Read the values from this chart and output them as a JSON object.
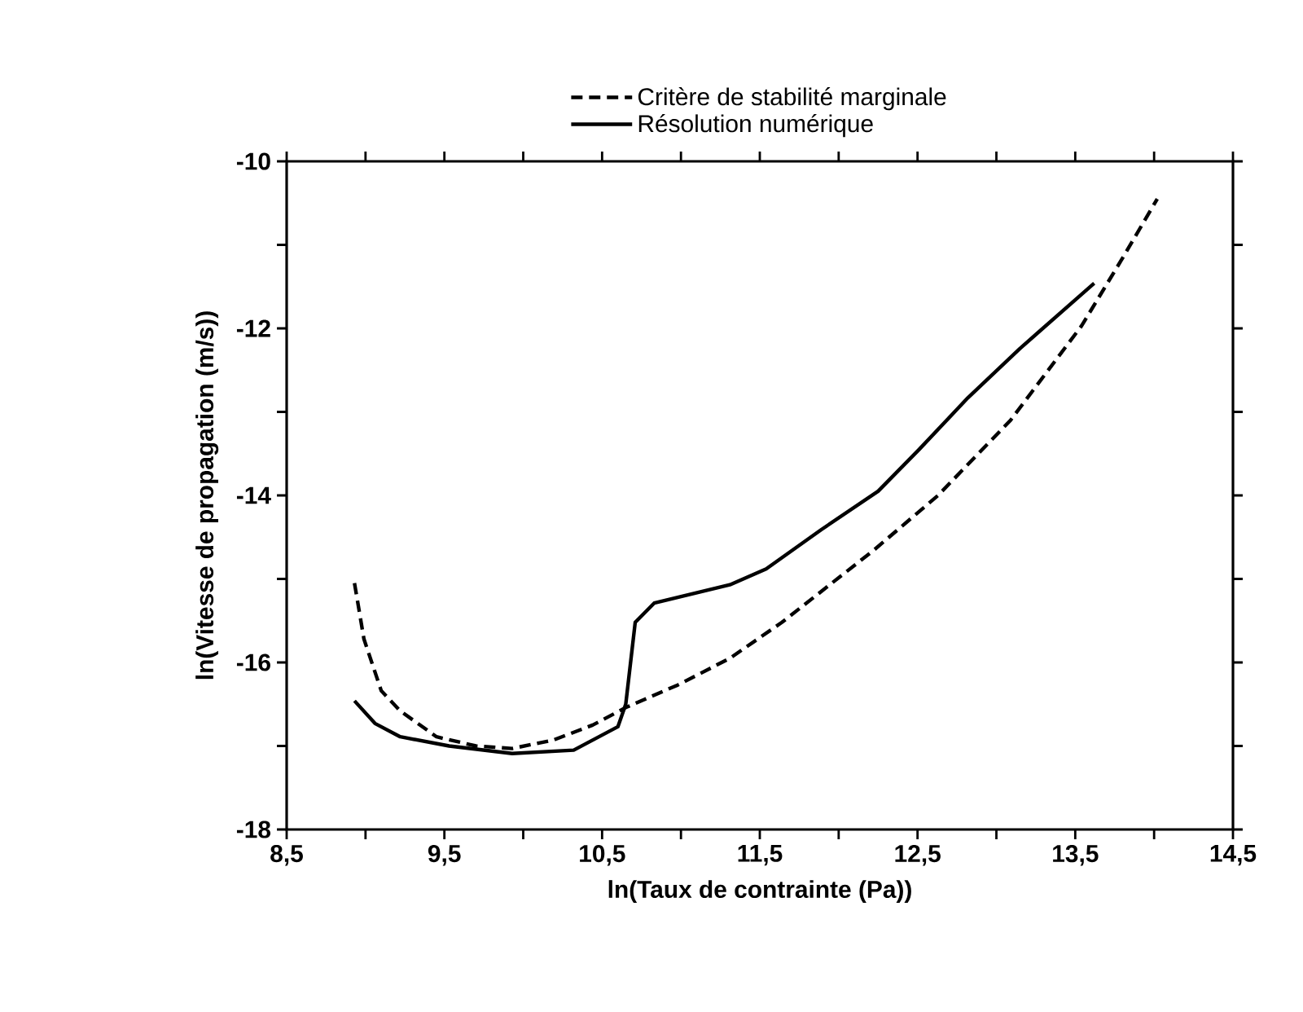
{
  "chart_data": {
    "type": "line",
    "xlabel": "ln(Taux de contrainte (Pa))",
    "ylabel": "ln(Vitesse de propagation (m/s))",
    "xlim": [
      8.5,
      14.5
    ],
    "ylim": [
      -18,
      -10
    ],
    "xticks": [
      {
        "value": 8.5,
        "label": "8,5"
      },
      {
        "value": 9,
        "label": null
      },
      {
        "value": 9.5,
        "label": "9,5"
      },
      {
        "value": 10,
        "label": null
      },
      {
        "value": 10.5,
        "label": "10,5"
      },
      {
        "value": 11,
        "label": null
      },
      {
        "value": 11.5,
        "label": "11,5"
      },
      {
        "value": 12,
        "label": null
      },
      {
        "value": 12.5,
        "label": "12,5"
      },
      {
        "value": 13,
        "label": null
      },
      {
        "value": 13.5,
        "label": "13,5"
      },
      {
        "value": 14,
        "label": null
      },
      {
        "value": 14.5,
        "label": "14,5"
      }
    ],
    "yticks": [
      -18,
      {
        "value": -17,
        "label": null
      },
      -16,
      {
        "value": -15,
        "label": null
      },
      -14,
      {
        "value": -13,
        "label": null
      },
      -12,
      {
        "value": -11,
        "label": null
      },
      -10
    ],
    "legend": "top",
    "grid": false,
    "series": [
      {
        "name": "Critère de stabilité marginale",
        "color": "#000000",
        "line_style": "dashed",
        "x": [
          8.93,
          8.99,
          9.1,
          9.22,
          9.45,
          9.7,
          9.93,
          10.19,
          10.44,
          10.65,
          10.98,
          11.31,
          11.64,
          12.22,
          12.63,
          13.09,
          13.54,
          13.79,
          14.02
        ],
        "values": [
          -15.05,
          -15.72,
          -16.34,
          -16.58,
          -16.89,
          -17.0,
          -17.03,
          -16.93,
          -16.75,
          -16.54,
          -16.27,
          -15.95,
          -15.52,
          -14.66,
          -14.0,
          -13.1,
          -11.97,
          -11.19,
          -10.45
        ]
      },
      {
        "name": "Résolution numérique",
        "color": "#000000",
        "line_style": "solid",
        "x": [
          8.93,
          9.06,
          9.22,
          9.53,
          9.93,
          10.32,
          10.6,
          10.65,
          10.71,
          10.83,
          11.31,
          11.54,
          11.89,
          12.25,
          12.51,
          12.82,
          13.15,
          13.62
        ],
        "values": [
          -16.46,
          -16.73,
          -16.89,
          -17.0,
          -17.09,
          -17.05,
          -16.77,
          -16.5,
          -15.52,
          -15.29,
          -15.07,
          -14.88,
          -14.41,
          -13.95,
          -13.45,
          -12.83,
          -12.24,
          -11.46
        ]
      }
    ]
  }
}
